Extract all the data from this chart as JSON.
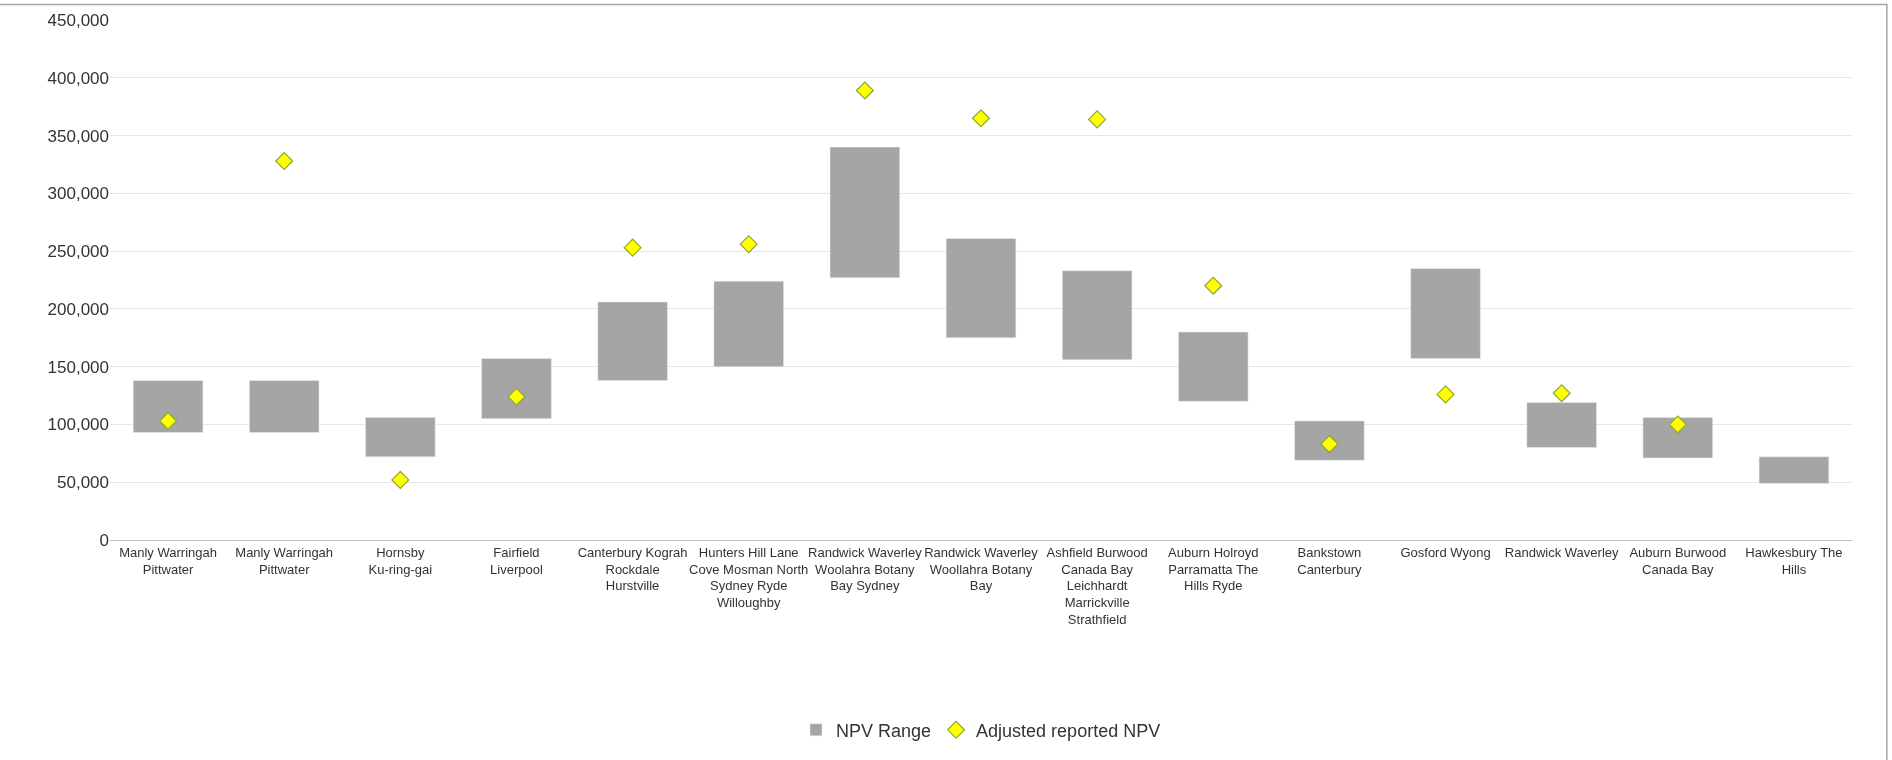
{
  "chart_data": {
    "type": "bar",
    "categories": [
      "Manly Warringah Pittwater",
      "Manly Warringah Pittwater",
      "Hornsby Ku-ring-gai",
      "Fairfield Liverpool",
      "Canterbury Kograh Rockdale Hurstville",
      "Hunters Hill Lane Cove Mosman North Sydney Ryde Willoughby",
      "Randwick Waverley Woolahra Botany Bay Sydney",
      "Randwick Waverley Woollahra Botany Bay",
      "Ashfield Burwood Canada Bay Leichhardt Marrickville Strathfield",
      "Auburn Holroyd Parramatta The Hills Ryde",
      "Bankstown Canterbury",
      "Gosford Wyong",
      "Randwick Waverley",
      "Auburn Burwood Canada Bay",
      "Hawkesbury The Hills"
    ],
    "series": [
      {
        "name": "NPV Range",
        "color": "#a5a5a5",
        "base": [
          93000,
          93000,
          72000,
          105000,
          138000,
          150000,
          227000,
          175000,
          156000,
          120000,
          69000,
          157000,
          80000,
          71000,
          49000
        ],
        "values": [
          45000,
          45000,
          34000,
          52000,
          68000,
          74000,
          113000,
          86000,
          77000,
          60000,
          34000,
          78000,
          39000,
          35000,
          23000
        ]
      },
      {
        "name": "Adjusted reported NPV",
        "type": "scatter",
        "color": "#ffff00",
        "marker": "diamond",
        "values": [
          103000,
          328000,
          52000,
          124000,
          253000,
          256000,
          389000,
          365000,
          364000,
          220000,
          83000,
          126000,
          127000,
          100000,
          null
        ]
      }
    ],
    "ylim": [
      0,
      450000
    ],
    "yticks": [
      0,
      {
        "value": 50000,
        "label": "50,000"
      },
      {
        "value": 100000,
        "label": "100,000"
      },
      {
        "value": 150000,
        "label": "150,000"
      },
      {
        "value": 200000,
        "label": "200,000"
      },
      {
        "value": 250000,
        "label": "250,000"
      },
      {
        "value": 300000,
        "label": "300,000"
      },
      {
        "value": 350000,
        "label": "350,000"
      },
      {
        "value": 400000,
        "label": "400,000"
      },
      {
        "value": 450000,
        "label": "450,000"
      }
    ],
    "grid": "y",
    "legend": "bottom"
  }
}
